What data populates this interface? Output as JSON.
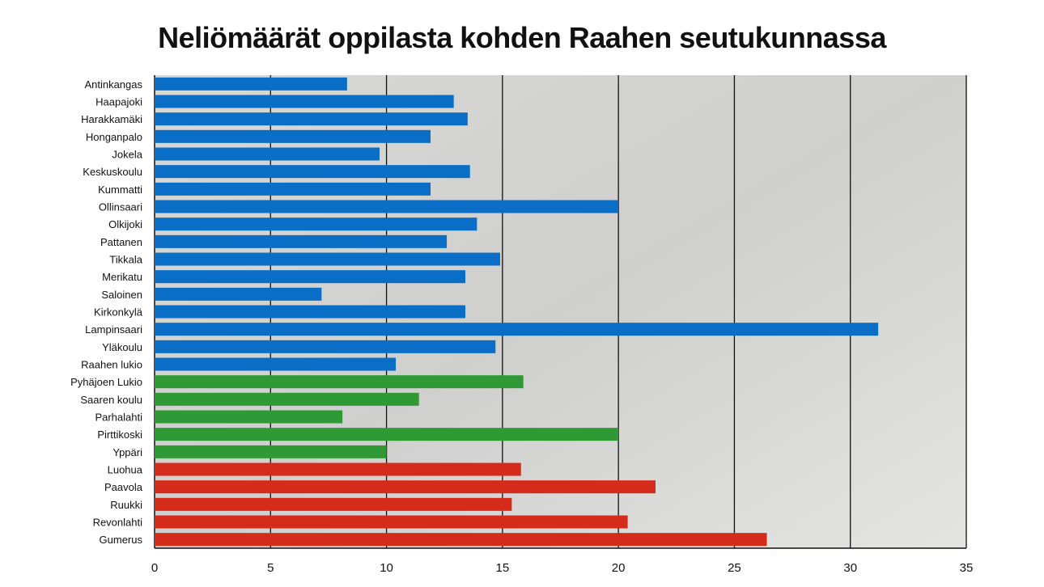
{
  "chart_data": {
    "type": "bar",
    "orientation": "horizontal",
    "title": "Neliömäärät oppilasta kohden Raahen seutukunnassa",
    "xlabel": "",
    "ylabel": "",
    "xlim": [
      0,
      35
    ],
    "xticks": [
      0,
      5,
      10,
      15,
      20,
      25,
      30,
      35
    ],
    "grid": "vertical",
    "categories": [
      "Antinkangas",
      "Haapajoki",
      "Harakkamäki",
      "Honganpalo",
      "Jokela",
      "Keskuskoulu",
      "Kummatti",
      "Ollinsaari",
      "Olkijoki",
      "Pattanen",
      "Tikkala",
      "Merikatu",
      "Saloinen",
      "Kirkonkylä",
      "Lampinsaari",
      "Yläkoulu",
      "Raahen lukio",
      "Pyhäjoen Lukio",
      "Saaren koulu",
      "Parhalahti",
      "Pirttikoski",
      "Yppäri",
      "Luohua",
      "Paavola",
      "Ruukki",
      "Revonlahti",
      "Gumerus"
    ],
    "values": [
      8.3,
      12.9,
      13.5,
      11.9,
      9.7,
      13.6,
      11.9,
      20.0,
      13.9,
      12.6,
      14.9,
      13.4,
      7.2,
      13.4,
      31.2,
      14.7,
      10.4,
      15.9,
      11.4,
      8.1,
      20.0,
      10.0,
      15.8,
      21.6,
      15.4,
      20.4,
      26.4
    ],
    "groups": [
      "blue",
      "blue",
      "blue",
      "blue",
      "blue",
      "blue",
      "blue",
      "blue",
      "blue",
      "blue",
      "blue",
      "blue",
      "blue",
      "blue",
      "blue",
      "blue",
      "blue",
      "green",
      "green",
      "green",
      "green",
      "green",
      "red",
      "red",
      "red",
      "red",
      "red"
    ],
    "colors": {
      "blue": "#0a6ec6",
      "green": "#2f9a35",
      "red": "#d52b1b"
    },
    "background": "faded photograph of children in a classroom"
  }
}
